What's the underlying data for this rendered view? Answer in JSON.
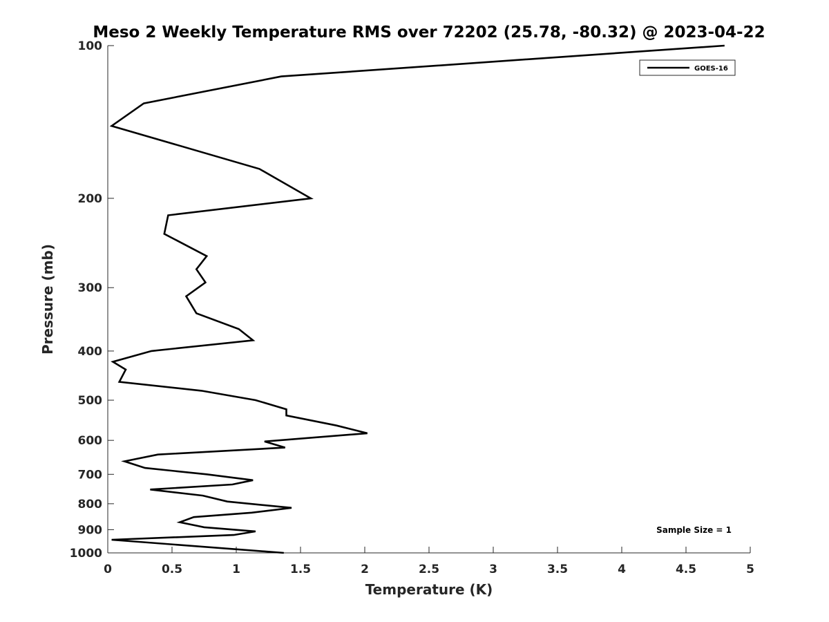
{
  "chart_data": {
    "type": "line",
    "title": "Meso 2 Weekly Temperature RMS over 72202 (25.78, -80.32) @ 2023-04-22",
    "xlabel": "Temperature (K)",
    "ylabel": "Pressure (mb)",
    "xlim": [
      0,
      5
    ],
    "ylim": [
      100,
      1000
    ],
    "yscale": "log",
    "y_reversed": true,
    "grid": false,
    "legend_position": "top-right",
    "x_ticks": [
      "0",
      "0.5",
      "1",
      "1.5",
      "2",
      "2.5",
      "3",
      "3.5",
      "4",
      "4.5",
      "5"
    ],
    "y_ticks": [
      "100",
      "200",
      "300",
      "400",
      "500",
      "600",
      "700",
      "800",
      "900",
      "1000"
    ],
    "annotation": "Sample Size = 1",
    "series": [
      {
        "name": "GOES-16",
        "color": "#000000",
        "points": [
          [
            4.8,
            100
          ],
          [
            1.35,
            115
          ],
          [
            0.28,
            130
          ],
          [
            0.03,
            144
          ],
          [
            1.18,
            175
          ],
          [
            1.58,
            200
          ],
          [
            0.47,
            216
          ],
          [
            0.44,
            235
          ],
          [
            0.77,
            260
          ],
          [
            0.69,
            276
          ],
          [
            0.76,
            293
          ],
          [
            0.61,
            312
          ],
          [
            0.69,
            337
          ],
          [
            1.02,
            362
          ],
          [
            1.13,
            381
          ],
          [
            0.34,
            400
          ],
          [
            0.04,
            420
          ],
          [
            0.14,
            435
          ],
          [
            0.09,
            460
          ],
          [
            0.73,
            479
          ],
          [
            1.15,
            500
          ],
          [
            1.39,
            521
          ],
          [
            1.39,
            536
          ],
          [
            1.78,
            561
          ],
          [
            2.02,
            581
          ],
          [
            1.22,
            603
          ],
          [
            1.38,
            620
          ],
          [
            0.39,
            640
          ],
          [
            0.13,
            660
          ],
          [
            0.29,
            680
          ],
          [
            0.77,
            700
          ],
          [
            1.13,
            719
          ],
          [
            0.97,
            733
          ],
          [
            0.33,
            750
          ],
          [
            0.74,
            771
          ],
          [
            0.93,
            792
          ],
          [
            1.43,
            815
          ],
          [
            1.12,
            833
          ],
          [
            0.67,
            850
          ],
          [
            0.56,
            870
          ],
          [
            0.75,
            890
          ],
          [
            1.15,
            907
          ],
          [
            0.98,
            922
          ],
          [
            0.03,
            942
          ],
          [
            1.37,
            1000
          ]
        ]
      }
    ]
  }
}
